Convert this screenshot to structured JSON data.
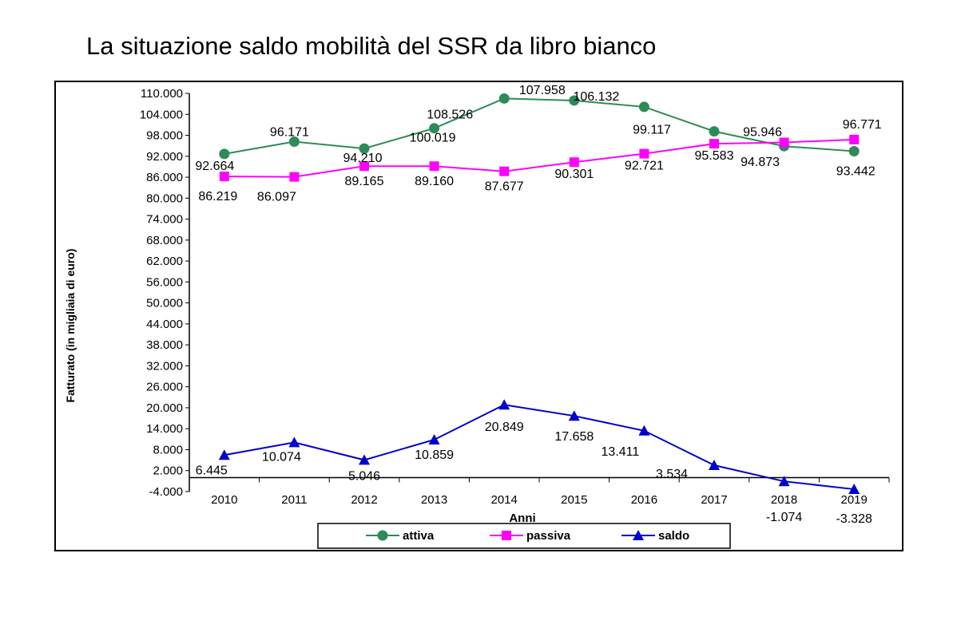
{
  "slide": {
    "title": "La situazione saldo mobilità del SSR da libro bianco"
  },
  "colors": {
    "attiva": "#2e8b57",
    "passiva": "#ff00ff",
    "saldo": "#0000cc",
    "axis": "#000000",
    "frame": "#000000"
  },
  "chart_data": {
    "type": "line",
    "xlabel": "Anni",
    "ylabel": "Fatturato (in migliaia di euro)",
    "categories": [
      "2010",
      "2011",
      "2012",
      "2013",
      "2014",
      "2015",
      "2016",
      "2017",
      "2018",
      "2019"
    ],
    "ylim": [
      -4000,
      110000
    ],
    "yticks": [
      -4000,
      2000,
      8000,
      14000,
      20000,
      26000,
      32000,
      38000,
      44000,
      50000,
      56000,
      62000,
      68000,
      74000,
      80000,
      86000,
      92000,
      98000,
      104000,
      110000
    ],
    "ytick_labels": [
      "-4.000",
      "2.000",
      "8.000",
      "14.000",
      "20.000",
      "26.000",
      "32.000",
      "38.000",
      "44.000",
      "50.000",
      "56.000",
      "62.000",
      "68.000",
      "74.000",
      "80.000",
      "86.000",
      "92.000",
      "98.000",
      "104.000",
      "110.000"
    ],
    "grid": false,
    "legend_position": "bottom",
    "series": [
      {
        "name": "attiva",
        "marker": "circle",
        "values": [
          92664,
          96171,
          94210,
          100019,
          108526,
          107958,
          106132,
          99117,
          94873,
          93442
        ],
        "labels": [
          "92.664",
          "96.171",
          "94.210",
          "100.019",
          "108.526",
          "107.958",
          "106.132",
          "99.117",
          "94.873",
          "93.442"
        ]
      },
      {
        "name": "passiva",
        "marker": "square",
        "values": [
          86219,
          86097,
          89165,
          89160,
          87677,
          90301,
          92721,
          95583,
          95946,
          96771
        ],
        "labels": [
          "86.219",
          "86.097",
          "89.165",
          "89.160",
          "87.677",
          "90.301",
          "92.721",
          "95.583",
          "95.946",
          "96.771"
        ]
      },
      {
        "name": "saldo",
        "marker": "triangle",
        "values": [
          6445,
          10074,
          5046,
          10859,
          20849,
          17658,
          13411,
          3534,
          -1074,
          -3328
        ],
        "labels": [
          "6.445",
          "10.074",
          "5.046",
          "10.859",
          "20.849",
          "17.658",
          "13.411",
          "3.534",
          "-1.074",
          "-3.328"
        ]
      }
    ]
  }
}
